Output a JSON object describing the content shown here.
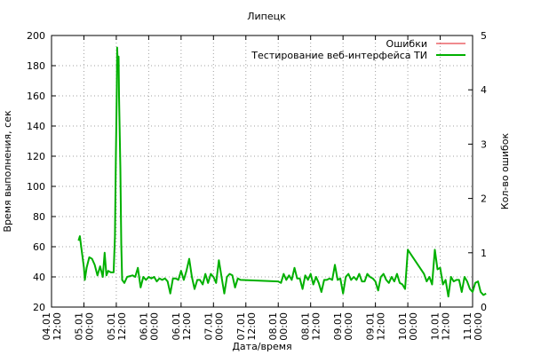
{
  "chart_data": {
    "type": "line",
    "title": "Липецк",
    "xlabel": "Дата/время",
    "ylabel": "Время выполнения, сек",
    "y2label": "Кол-во ошибок",
    "xlim": [
      "2014-01-04 12:00",
      "2014-01-11 00:00"
    ],
    "ylim": [
      20,
      200
    ],
    "y2lim": [
      0,
      5
    ],
    "grid": true,
    "legend_position": "top-right",
    "x_ticks": [
      "04.01 12:00",
      "05.01 00:00",
      "05.01 12:00",
      "06.01 00:00",
      "06.01 12:00",
      "07.01 00:00",
      "07.01 12:00",
      "08.01 00:00",
      "08.01 12:00",
      "09.01 00:00",
      "09.01 12:00",
      "10.01 00:00",
      "10.01 12:00",
      "11.01 00:00"
    ],
    "y_ticks": [
      20,
      40,
      60,
      80,
      100,
      120,
      140,
      160,
      180,
      200
    ],
    "y2_ticks": [
      0,
      1,
      2,
      3,
      4,
      5
    ],
    "series": [
      {
        "name": "Ошибки",
        "color": "#e0141e",
        "axis": "y2",
        "points": []
      },
      {
        "name": "Тестирование веб-интерфейса ТИ",
        "color": "#00b000",
        "axis": "y",
        "points": [
          [
            "2014-01-04 22:00",
            64
          ],
          [
            "2014-01-04 22:30",
            67
          ],
          [
            "2014-01-04 23:00",
            60
          ],
          [
            "2014-01-05 00:00",
            46
          ],
          [
            "2014-01-05 00:20",
            38
          ],
          [
            "2014-01-05 01:00",
            46
          ],
          [
            "2014-01-05 02:00",
            53
          ],
          [
            "2014-01-05 03:00",
            52
          ],
          [
            "2014-01-05 04:00",
            48
          ],
          [
            "2014-01-05 05:00",
            41
          ],
          [
            "2014-01-05 06:00",
            47
          ],
          [
            "2014-01-05 07:00",
            40
          ],
          [
            "2014-01-05 07:40",
            56
          ],
          [
            "2014-01-05 08:20",
            41
          ],
          [
            "2014-01-05 09:00",
            44
          ],
          [
            "2014-01-05 10:00",
            43
          ],
          [
            "2014-01-05 11:00",
            43
          ],
          [
            "2014-01-05 11:30",
            67
          ],
          [
            "2014-01-05 11:50",
            118
          ],
          [
            "2014-01-05 12:10",
            160
          ],
          [
            "2014-01-05 12:20",
            192
          ],
          [
            "2014-01-05 12:35",
            178
          ],
          [
            "2014-01-05 12:50",
            186
          ],
          [
            "2014-01-05 13:00",
            160
          ],
          [
            "2014-01-05 13:30",
            112
          ],
          [
            "2014-01-05 13:50",
            62
          ],
          [
            "2014-01-05 14:10",
            38
          ],
          [
            "2014-01-05 15:00",
            36
          ],
          [
            "2014-01-05 16:00",
            40
          ],
          [
            "2014-01-05 18:00",
            41
          ],
          [
            "2014-01-05 19:00",
            40
          ],
          [
            "2014-01-05 20:00",
            46
          ],
          [
            "2014-01-05 21:00",
            33
          ],
          [
            "2014-01-05 22:00",
            40
          ],
          [
            "2014-01-05 23:00",
            38
          ],
          [
            "2014-01-06 00:00",
            40
          ],
          [
            "2014-01-06 01:00",
            39
          ],
          [
            "2014-01-06 02:00",
            40
          ],
          [
            "2014-01-06 03:00",
            37
          ],
          [
            "2014-01-06 04:00",
            39
          ],
          [
            "2014-01-06 05:00",
            38
          ],
          [
            "2014-01-06 06:00",
            39
          ],
          [
            "2014-01-06 07:00",
            37
          ],
          [
            "2014-01-06 08:00",
            29
          ],
          [
            "2014-01-06 09:00",
            39
          ],
          [
            "2014-01-06 10:00",
            39
          ],
          [
            "2014-01-06 11:00",
            38
          ],
          [
            "2014-01-06 12:00",
            44
          ],
          [
            "2014-01-06 13:00",
            38
          ],
          [
            "2014-01-06 14:00",
            44
          ],
          [
            "2014-01-06 15:00",
            52
          ],
          [
            "2014-01-06 16:00",
            40
          ],
          [
            "2014-01-06 17:00",
            32
          ],
          [
            "2014-01-06 18:00",
            38
          ],
          [
            "2014-01-06 19:00",
            38
          ],
          [
            "2014-01-06 20:00",
            35
          ],
          [
            "2014-01-06 21:00",
            42
          ],
          [
            "2014-01-06 22:00",
            36
          ],
          [
            "2014-01-06 23:00",
            42
          ],
          [
            "2014-01-07 00:00",
            40
          ],
          [
            "2014-01-07 01:00",
            36
          ],
          [
            "2014-01-07 02:00",
            51
          ],
          [
            "2014-01-07 03:00",
            40
          ],
          [
            "2014-01-07 04:00",
            29
          ],
          [
            "2014-01-07 05:00",
            40
          ],
          [
            "2014-01-07 06:00",
            42
          ],
          [
            "2014-01-07 07:00",
            41
          ],
          [
            "2014-01-07 08:00",
            33
          ],
          [
            "2014-01-07 09:00",
            39
          ],
          [
            "2014-01-07 10:00",
            38
          ],
          [
            "2014-01-08 00:00",
            37
          ],
          [
            "2014-01-08 01:00",
            36
          ],
          [
            "2014-01-08 02:00",
            42
          ],
          [
            "2014-01-08 03:00",
            38
          ],
          [
            "2014-01-08 04:00",
            41
          ],
          [
            "2014-01-08 05:00",
            38
          ],
          [
            "2014-01-08 06:00",
            46
          ],
          [
            "2014-01-08 07:00",
            39
          ],
          [
            "2014-01-08 08:00",
            39
          ],
          [
            "2014-01-08 09:00",
            32
          ],
          [
            "2014-01-08 10:00",
            41
          ],
          [
            "2014-01-08 11:00",
            38
          ],
          [
            "2014-01-08 12:00",
            42
          ],
          [
            "2014-01-08 13:00",
            35
          ],
          [
            "2014-01-08 14:00",
            40
          ],
          [
            "2014-01-08 15:00",
            36
          ],
          [
            "2014-01-08 16:00",
            30
          ],
          [
            "2014-01-08 17:00",
            38
          ],
          [
            "2014-01-08 18:00",
            38
          ],
          [
            "2014-01-08 19:00",
            39
          ],
          [
            "2014-01-08 20:00",
            38
          ],
          [
            "2014-01-08 21:00",
            48
          ],
          [
            "2014-01-08 22:00",
            38
          ],
          [
            "2014-01-08 23:00",
            39
          ],
          [
            "2014-01-09 00:00",
            29
          ],
          [
            "2014-01-09 01:00",
            40
          ],
          [
            "2014-01-09 02:00",
            42
          ],
          [
            "2014-01-09 03:00",
            38
          ],
          [
            "2014-01-09 04:00",
            40
          ],
          [
            "2014-01-09 05:00",
            38
          ],
          [
            "2014-01-09 06:00",
            42
          ],
          [
            "2014-01-09 07:00",
            37
          ],
          [
            "2014-01-09 08:00",
            37
          ],
          [
            "2014-01-09 09:00",
            42
          ],
          [
            "2014-01-09 10:00",
            40
          ],
          [
            "2014-01-09 11:00",
            39
          ],
          [
            "2014-01-09 12:00",
            37
          ],
          [
            "2014-01-09 13:00",
            31
          ],
          [
            "2014-01-09 14:00",
            40
          ],
          [
            "2014-01-09 15:00",
            42
          ],
          [
            "2014-01-09 16:00",
            38
          ],
          [
            "2014-01-09 17:00",
            36
          ],
          [
            "2014-01-09 18:00",
            40
          ],
          [
            "2014-01-09 19:00",
            37
          ],
          [
            "2014-01-09 20:00",
            42
          ],
          [
            "2014-01-09 21:00",
            36
          ],
          [
            "2014-01-09 22:00",
            35
          ],
          [
            "2014-01-09 23:00",
            32
          ],
          [
            "2014-01-10 00:00",
            58
          ],
          [
            "2014-01-10 06:00",
            42
          ],
          [
            "2014-01-10 07:00",
            37
          ],
          [
            "2014-01-10 08:00",
            40
          ],
          [
            "2014-01-10 09:00",
            35
          ],
          [
            "2014-01-10 10:00",
            58
          ],
          [
            "2014-01-10 11:00",
            45
          ],
          [
            "2014-01-10 12:00",
            46
          ],
          [
            "2014-01-10 13:00",
            35
          ],
          [
            "2014-01-10 14:00",
            38
          ],
          [
            "2014-01-10 15:00",
            27
          ],
          [
            "2014-01-10 16:00",
            40
          ],
          [
            "2014-01-10 17:00",
            37
          ],
          [
            "2014-01-10 18:00",
            38
          ],
          [
            "2014-01-10 19:00",
            38
          ],
          [
            "2014-01-10 20:00",
            30
          ],
          [
            "2014-01-10 21:00",
            40
          ],
          [
            "2014-01-10 22:00",
            37
          ],
          [
            "2014-01-10 23:00",
            32
          ],
          [
            "2014-01-11 00:00",
            30
          ],
          [
            "2014-01-11 01:00",
            36
          ],
          [
            "2014-01-11 02:00",
            37
          ],
          [
            "2014-01-11 03:00",
            30
          ],
          [
            "2014-01-11 04:00",
            28
          ],
          [
            "2014-01-11 05:00",
            29
          ]
        ]
      }
    ]
  }
}
